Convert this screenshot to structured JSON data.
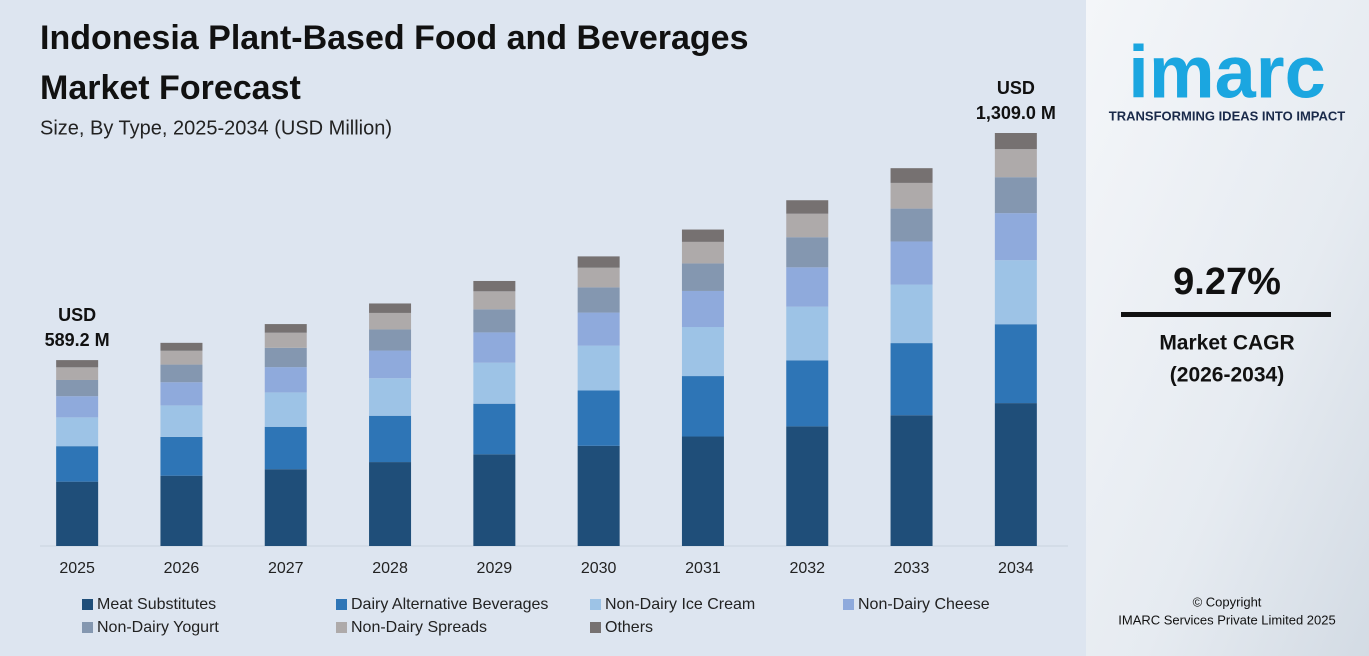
{
  "chart_data": {
    "type": "stacked_bar",
    "title_lines": [
      "Indonesia Plant-Based Food and Beverages",
      "Market Forecast"
    ],
    "subtitle": "Size, By Type, 2025-2034 (USD Million)",
    "categories": [
      "2025",
      "2026",
      "2027",
      "2028",
      "2029",
      "2030",
      "2031",
      "2032",
      "2033",
      "2034"
    ],
    "series": [
      {
        "name": "Meat Substitutes",
        "color": "#1f4e79",
        "values": [
          203.9,
          222.8,
          243.4,
          266.0,
          290.6,
          317.6,
          347.0,
          379.2,
          414.4,
          452.9
        ]
      },
      {
        "name": "Dairy Alternative Beverages",
        "color": "#2e75b6",
        "values": [
          112.5,
          123.0,
          134.4,
          146.8,
          160.4,
          175.3,
          191.6,
          209.3,
          228.7,
          250.0
        ]
      },
      {
        "name": "Non-Dairy Ice Cream",
        "color": "#9dc3e6",
        "values": [
          91.3,
          99.8,
          109.0,
          119.1,
          130.2,
          142.3,
          155.5,
          169.9,
          185.6,
          202.9
        ]
      },
      {
        "name": "Non-Dairy Cheese",
        "color": "#8faadc",
        "values": [
          67.2,
          73.4,
          80.2,
          87.6,
          95.8,
          104.6,
          114.3,
          124.9,
          136.5,
          149.2
        ]
      },
      {
        "name": "Non-Dairy Yogurt",
        "color": "#8497b0",
        "values": [
          51.3,
          56.0,
          61.2,
          66.9,
          73.1,
          79.9,
          87.3,
          95.4,
          104.2,
          113.9
        ]
      },
      {
        "name": "Non-Dairy Spreads",
        "color": "#aeaaaa",
        "values": [
          40.1,
          43.8,
          47.8,
          52.3,
          57.1,
          62.4,
          68.2,
          74.5,
          81.4,
          89.0
        ]
      },
      {
        "name": "Others",
        "color": "#767171",
        "values": [
          22.9,
          25.1,
          27.4,
          30.0,
          32.8,
          35.8,
          39.1,
          42.7,
          46.7,
          51.1
        ]
      }
    ],
    "ylim": [
      0,
      1309
    ],
    "annotations": [
      {
        "lines": [
          "USD",
          "589.2 M"
        ]
      },
      {
        "lines": [
          "USD",
          "1,309.0 M"
        ]
      }
    ]
  },
  "side_panel": {
    "logo": "imarc",
    "tagline": "TRANSFORMING IDEAS INTO IMPACT",
    "cagr": "9.27%",
    "cagr_label": "Market CAGR",
    "cagr_period": "(2026-2034)",
    "copyright": [
      "© Copyright",
      "IMARC Services Private Limited 2025"
    ]
  }
}
